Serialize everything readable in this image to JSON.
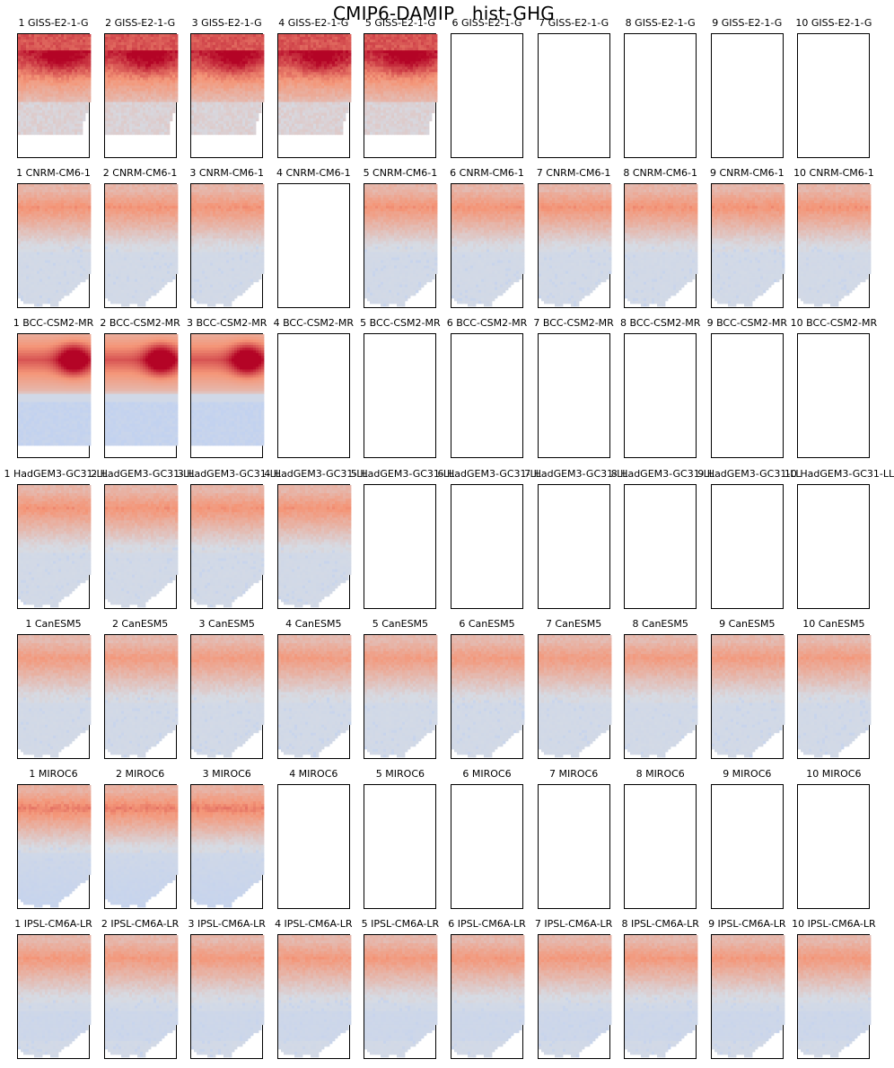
{
  "figure": {
    "title": "CMIP6-DAMIP   hist-GHG"
  },
  "colors": {
    "cmap": "coolwarm",
    "scale_low": "#b8cdf5",
    "neutral": "#d6dbe4",
    "scale_high": "#b40426"
  },
  "chart_data": {
    "type": "heatmap",
    "layout": "small-multiples grid, 7 rows (models) x 10 columns (ensemble members)",
    "colormap": "coolwarm",
    "xlabel": "",
    "ylabel": "",
    "ticks": "none",
    "rows": [
      {
        "model": "GISS-E2-1-G",
        "available_members": [
          1,
          2,
          3,
          4,
          5
        ],
        "intensity": 0.95,
        "profile": "giss",
        "titles": [
          "1 GISS-E2-1-G",
          "2 GISS-E2-1-G",
          "3 GISS-E2-1-G",
          "4 GISS-E2-1-G",
          "5 GISS-E2-1-G",
          "6 GISS-E2-1-G",
          "7 GISS-E2-1-G",
          "8 GISS-E2-1-G",
          "9 GISS-E2-1-G",
          "10 GISS-E2-1-G"
        ]
      },
      {
        "model": "CNRM-CM6-1",
        "available_members": [
          1,
          2,
          3,
          5,
          6,
          7,
          8,
          9,
          10
        ],
        "intensity": 0.55,
        "profile": "std",
        "titles": [
          "1 CNRM-CM6-1",
          "2 CNRM-CM6-1",
          "3 CNRM-CM6-1",
          "4 CNRM-CM6-1",
          "5 CNRM-CM6-1",
          "6 CNRM-CM6-1",
          "7 CNRM-CM6-1",
          "8 CNRM-CM6-1",
          "9 CNRM-CM6-1",
          "10 CNRM-CM6-1"
        ]
      },
      {
        "model": "BCC-CSM2-MR",
        "available_members": [
          1,
          2,
          3
        ],
        "intensity": 1.0,
        "profile": "bcc",
        "titles": [
          "1 BCC-CSM2-MR",
          "2 BCC-CSM2-MR",
          "3 BCC-CSM2-MR",
          "4 BCC-CSM2-MR",
          "5 BCC-CSM2-MR",
          "6 BCC-CSM2-MR",
          "7 BCC-CSM2-MR",
          "8 BCC-CSM2-MR",
          "9 BCC-CSM2-MR",
          "10 BCC-CSM2-MR"
        ]
      },
      {
        "model": "HadGEM3-GC31-LL",
        "available_members": [
          1,
          2,
          3,
          4
        ],
        "intensity": 0.55,
        "profile": "std",
        "titles": [
          "1 HadGEM3-GC31-LL",
          "2 HadGEM3-GC31-LL",
          "3 HadGEM3-GC31-LL",
          "4 HadGEM3-GC31-LL",
          "5 HadGEM3-GC31-LL",
          "6 HadGEM3-GC31-LL",
          "7 HadGEM3-GC31-LL",
          "8 HadGEM3-GC31-LL",
          "9 HadGEM3-GC31-LL",
          "10 HadGEM3-GC31-LL"
        ]
      },
      {
        "model": "CanESM5",
        "available_members": [
          1,
          2,
          3,
          4,
          5,
          6,
          7,
          8,
          9,
          10
        ],
        "intensity": 0.5,
        "profile": "std",
        "titles": [
          "1 CanESM5",
          "2 CanESM5",
          "3 CanESM5",
          "4 CanESM5",
          "5 CanESM5",
          "6 CanESM5",
          "7 CanESM5",
          "8 CanESM5",
          "9 CanESM5",
          "10 CanESM5"
        ]
      },
      {
        "model": "MIROC6",
        "available_members": [
          1,
          2,
          3
        ],
        "intensity": 0.62,
        "profile": "miroc",
        "titles": [
          "1 MIROC6",
          "2 MIROC6",
          "3 MIROC6",
          "4 MIROC6",
          "5 MIROC6",
          "6 MIROC6",
          "7 MIROC6",
          "8 MIROC6",
          "9 MIROC6",
          "10 MIROC6"
        ]
      },
      {
        "model": "IPSL-CM6A-LR",
        "available_members": [
          1,
          2,
          3,
          4,
          5,
          6,
          7,
          8,
          9,
          10
        ],
        "intensity": 0.52,
        "profile": "ipsl",
        "titles": [
          "1 IPSL-CM6A-LR",
          "2 IPSL-CM6A-LR",
          "3 IPSL-CM6A-LR",
          "4 IPSL-CM6A-LR",
          "5 IPSL-CM6A-LR",
          "6 IPSL-CM6A-LR",
          "7 IPSL-CM6A-LR",
          "8 IPSL-CM6A-LR",
          "9 IPSL-CM6A-LR",
          "10 IPSL-CM6A-LR"
        ]
      }
    ]
  }
}
